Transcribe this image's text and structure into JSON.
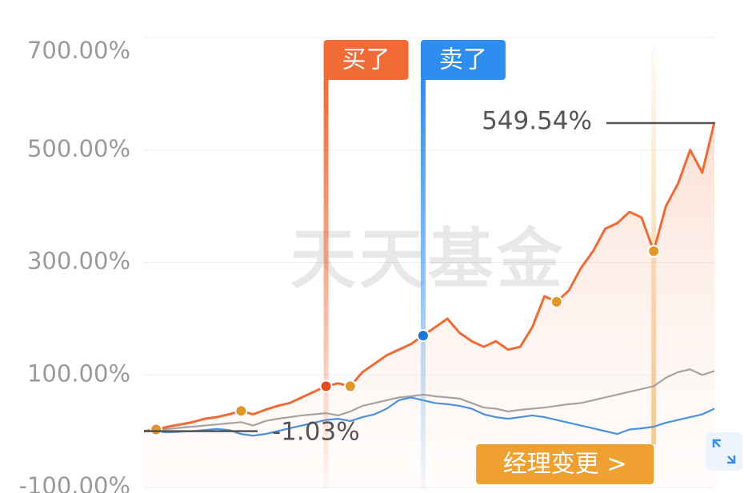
{
  "chart_data": {
    "type": "line",
    "ylim": [
      -100,
      700
    ],
    "yticks": [
      {
        "value": 700,
        "label": "700.00%"
      },
      {
        "value": 500,
        "label": "500.00%"
      },
      {
        "value": 300,
        "label": "300.00%"
      },
      {
        "value": 100,
        "label": "100.00%"
      },
      {
        "value": -100,
        "label": "-100.00%"
      }
    ],
    "grid": true,
    "series": [
      {
        "color": "#a7a3a3",
        "values": [
          0,
          2,
          4,
          6,
          8,
          10,
          12,
          14,
          16,
          10,
          18,
          22,
          25,
          28,
          30,
          32,
          28,
          35,
          45,
          50,
          55,
          60,
          62,
          65,
          62,
          60,
          58,
          50,
          42,
          40,
          35,
          38,
          40,
          42,
          45,
          48,
          50,
          55,
          60,
          65,
          70,
          75,
          80,
          95,
          105,
          110,
          100,
          107
        ]
      },
      {
        "color": "#4a8fe0",
        "values": [
          0,
          -1,
          -2,
          -1,
          0,
          2,
          4,
          2,
          -5,
          -8,
          -5,
          0,
          5,
          10,
          15,
          20,
          22,
          18,
          25,
          30,
          40,
          55,
          60,
          55,
          50,
          48,
          45,
          40,
          30,
          25,
          22,
          25,
          28,
          25,
          20,
          15,
          10,
          5,
          0,
          -5,
          3,
          5,
          8,
          15,
          20,
          25,
          30,
          40
        ]
      },
      {
        "color": "#f06a35",
        "values": [
          0,
          3,
          8,
          12,
          16,
          22,
          25,
          30,
          36,
          30,
          38,
          45,
          50,
          60,
          70,
          80,
          85,
          80,
          105,
          120,
          135,
          145,
          155,
          170,
          185,
          200,
          175,
          160,
          150,
          160,
          145,
          150,
          185,
          240,
          230,
          250,
          290,
          320,
          360,
          370,
          390,
          380,
          320,
          400,
          440,
          500,
          460,
          549.54
        ]
      }
    ],
    "event_points": [
      {
        "index": 1,
        "color": "#e0962a"
      },
      {
        "index": 8,
        "color": "#e0962a"
      },
      {
        "index": 15,
        "color": "#e04a1e"
      },
      {
        "index": 17,
        "color": "#e0962a"
      },
      {
        "index": 23,
        "color": "#1a78d6"
      },
      {
        "index": 34,
        "color": "#e0962a"
      },
      {
        "index": 42,
        "color": "#e0962a"
      }
    ],
    "annotations": {
      "buy": {
        "text": "买了",
        "index": 15,
        "color": "#f26a35"
      },
      "sell": {
        "text": "卖了",
        "index": 23,
        "color": "#2d8ef0"
      },
      "manager": {
        "text": "经理变更 >",
        "index": 42,
        "color": "#f0a030"
      },
      "last": {
        "text": "549.54%"
      },
      "first": {
        "text": "-1.03%"
      }
    },
    "watermark": "天天基金"
  }
}
